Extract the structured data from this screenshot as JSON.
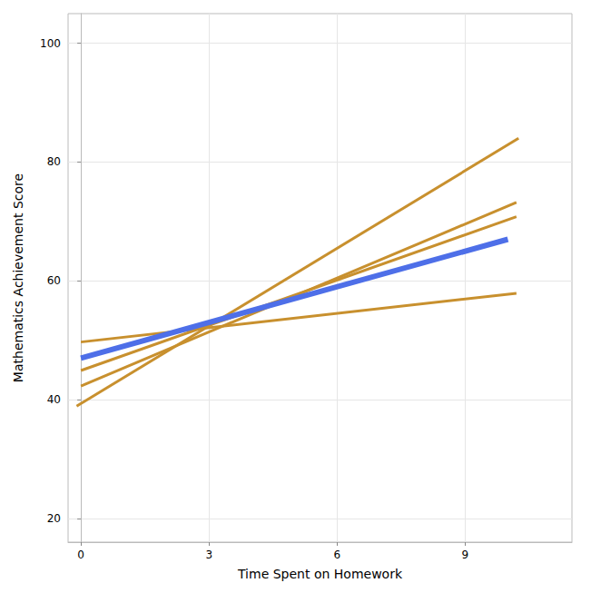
{
  "chart_data": {
    "type": "line",
    "x_label": "Time Spent on Homework",
    "y_label": "Mathematics Achievement Score",
    "xlim": [
      -0.3,
      11.5
    ],
    "xticks": [
      0,
      3,
      6,
      9
    ],
    "ylim": [
      16,
      105
    ],
    "yticks": [
      20,
      40,
      60,
      80,
      100
    ],
    "grid": true,
    "series": [
      {
        "color": "#c8902e",
        "x": [
          -0.1,
          10.25
        ],
        "values": [
          38.9,
          84.0
        ]
      },
      {
        "color": "#c8902e",
        "x": [
          0,
          10.2
        ],
        "values": [
          42.3,
          73.2
        ]
      },
      {
        "color": "#c8902e",
        "x": [
          0,
          10.2
        ],
        "values": [
          44.9,
          70.8
        ]
      },
      {
        "color": "#c8902e",
        "x": [
          0,
          10.2
        ],
        "values": [
          49.7,
          57.9
        ]
      },
      {
        "color": "#4e6fe8",
        "x": [
          0,
          10
        ],
        "values": [
          47.0,
          67.0
        ]
      }
    ]
  }
}
